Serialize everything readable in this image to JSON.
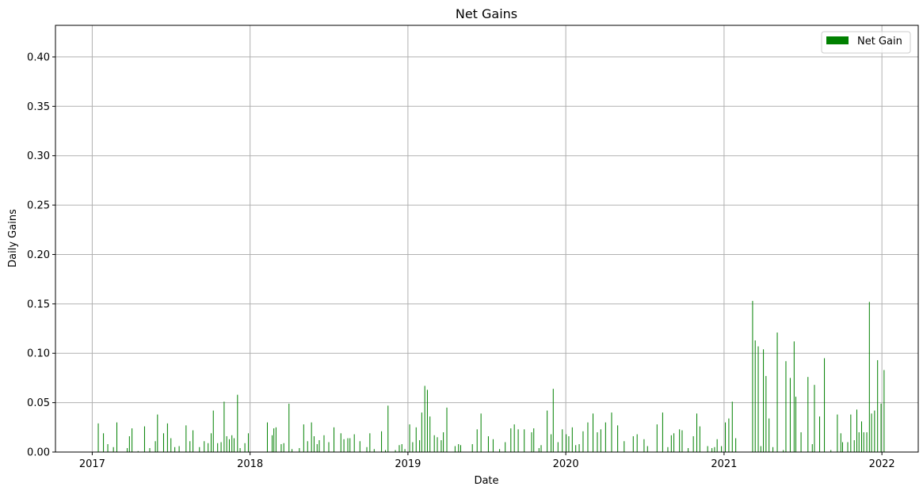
{
  "chart_data": {
    "type": "bar",
    "title": "Net Gains",
    "xlabel": "Date",
    "ylabel": "Daily Gains",
    "x_axis": "date",
    "xlim": [
      "2016-10-08",
      "2022-03-26"
    ],
    "ylim": [
      0,
      0.432
    ],
    "x_ticks": [
      "2017",
      "2018",
      "2019",
      "2020",
      "2021",
      "2022"
    ],
    "y_ticks": [
      "0.00",
      "0.05",
      "0.10",
      "0.15",
      "0.20",
      "0.25",
      "0.30",
      "0.35",
      "0.40"
    ],
    "grid": true,
    "legend_position": "top-right",
    "bar_color": "#008000",
    "series": [
      {
        "name": "Net Gain",
        "points": [
          [
            "2017-01-15",
            0.029
          ],
          [
            "2017-01-27",
            0.019
          ],
          [
            "2017-02-06",
            0.008
          ],
          [
            "2017-02-19",
            0.005
          ],
          [
            "2017-02-27",
            0.03
          ],
          [
            "2017-03-23",
            0.004
          ],
          [
            "2017-03-28",
            0.016
          ],
          [
            "2017-04-03",
            0.024
          ],
          [
            "2017-04-17",
            0.001
          ],
          [
            "2017-05-02",
            0.026
          ],
          [
            "2017-05-14",
            0.004
          ],
          [
            "2017-05-27",
            0.011
          ],
          [
            "2017-06-01",
            0.038
          ],
          [
            "2017-06-15",
            0.019
          ],
          [
            "2017-06-24",
            0.029
          ],
          [
            "2017-07-02",
            0.014
          ],
          [
            "2017-07-11",
            0.005
          ],
          [
            "2017-07-21",
            0.006
          ],
          [
            "2017-08-06",
            0.027
          ],
          [
            "2017-08-15",
            0.011
          ],
          [
            "2017-08-22",
            0.022
          ],
          [
            "2017-09-06",
            0.005
          ],
          [
            "2017-09-17",
            0.011
          ],
          [
            "2017-09-26",
            0.009
          ],
          [
            "2017-10-03",
            0.019
          ],
          [
            "2017-10-08",
            0.042
          ],
          [
            "2017-10-18",
            0.009
          ],
          [
            "2017-10-26",
            0.01
          ],
          [
            "2017-11-02",
            0.051
          ],
          [
            "2017-11-08",
            0.016
          ],
          [
            "2017-11-20",
            0.017
          ],
          [
            "2017-11-25",
            0.014
          ],
          [
            "2017-12-03",
            0.058
          ],
          [
            "2017-12-20",
            0.009
          ],
          [
            "2017-12-28",
            0.019
          ],
          [
            "2017-11-14",
            0.013
          ],
          [
            "2017-12-09",
            0.004
          ],
          [
            "2018-02-10",
            0.03
          ],
          [
            "2018-02-21",
            0.017
          ],
          [
            "2018-02-25",
            0.024
          ],
          [
            "2018-03-02",
            0.025
          ],
          [
            "2018-03-14",
            0.008
          ],
          [
            "2018-03-20",
            0.009
          ],
          [
            "2018-04-01",
            0.049
          ],
          [
            "2018-04-08",
            0.003
          ],
          [
            "2018-04-25",
            0.004
          ],
          [
            "2018-05-05",
            0.028
          ],
          [
            "2018-05-14",
            0.011
          ],
          [
            "2018-05-23",
            0.03
          ],
          [
            "2018-05-29",
            0.016
          ],
          [
            "2018-06-05",
            0.008
          ],
          [
            "2018-06-10",
            0.012
          ],
          [
            "2018-06-21",
            0.017
          ],
          [
            "2018-07-02",
            0.01
          ],
          [
            "2018-07-14",
            0.025
          ],
          [
            "2018-07-30",
            0.019
          ],
          [
            "2018-08-06",
            0.013
          ],
          [
            "2018-08-15",
            0.014
          ],
          [
            "2018-08-20",
            0.014
          ],
          [
            "2018-08-30",
            0.018
          ],
          [
            "2018-09-12",
            0.011
          ],
          [
            "2018-09-28",
            0.005
          ],
          [
            "2018-10-05",
            0.019
          ],
          [
            "2018-10-15",
            0.003
          ],
          [
            "2018-11-01",
            0.021
          ],
          [
            "2018-11-10",
            0.002
          ],
          [
            "2018-11-16",
            0.047
          ],
          [
            "2018-12-03",
            0.002
          ],
          [
            "2018-12-12",
            0.007
          ],
          [
            "2018-12-18",
            0.008
          ],
          [
            "2018-12-25",
            0.003
          ],
          [
            "2019-01-05",
            0.028
          ],
          [
            "2019-01-12",
            0.01
          ],
          [
            "2019-01-20",
            0.025
          ],
          [
            "2019-01-28",
            0.012
          ],
          [
            "2019-02-02",
            0.04
          ],
          [
            "2019-02-09",
            0.067
          ],
          [
            "2019-02-15",
            0.063
          ],
          [
            "2019-02-21",
            0.036
          ],
          [
            "2019-03-03",
            0.017
          ],
          [
            "2019-03-10",
            0.015
          ],
          [
            "2019-03-19",
            0.012
          ],
          [
            "2019-03-24",
            0.02
          ],
          [
            "2019-04-01",
            0.045
          ],
          [
            "2019-04-20",
            0.006
          ],
          [
            "2019-04-28",
            0.008
          ],
          [
            "2019-05-03",
            0.007
          ],
          [
            "2019-05-30",
            0.008
          ],
          [
            "2019-06-10",
            0.023
          ],
          [
            "2019-06-19",
            0.039
          ],
          [
            "2019-07-06",
            0.016
          ],
          [
            "2019-07-17",
            0.013
          ],
          [
            "2019-08-01",
            0.003
          ],
          [
            "2019-08-14",
            0.01
          ],
          [
            "2019-08-27",
            0.024
          ],
          [
            "2019-09-04",
            0.028
          ],
          [
            "2019-09-13",
            0.023
          ],
          [
            "2019-09-27",
            0.023
          ],
          [
            "2019-10-14",
            0.02
          ],
          [
            "2019-10-19",
            0.024
          ],
          [
            "2019-10-31",
            0.004
          ],
          [
            "2019-11-05",
            0.007
          ],
          [
            "2019-11-19",
            0.042
          ],
          [
            "2019-11-28",
            0.018
          ],
          [
            "2019-12-03",
            0.064
          ],
          [
            "2019-12-14",
            0.01
          ],
          [
            "2019-12-24",
            0.023
          ],
          [
            "2020-01-02",
            0.018
          ],
          [
            "2020-01-08",
            0.016
          ],
          [
            "2020-01-16",
            0.025
          ],
          [
            "2020-01-24",
            0.007
          ],
          [
            "2020-02-01",
            0.008
          ],
          [
            "2020-02-10",
            0.021
          ],
          [
            "2020-02-21",
            0.03
          ],
          [
            "2020-03-04",
            0.039
          ],
          [
            "2020-03-14",
            0.02
          ],
          [
            "2020-03-22",
            0.023
          ],
          [
            "2020-04-02",
            0.03
          ],
          [
            "2020-04-16",
            0.04
          ],
          [
            "2020-04-30",
            0.027
          ],
          [
            "2020-05-15",
            0.011
          ],
          [
            "2020-06-05",
            0.016
          ],
          [
            "2020-06-14",
            0.018
          ],
          [
            "2020-06-30",
            0.013
          ],
          [
            "2020-07-08",
            0.006
          ],
          [
            "2020-07-30",
            0.028
          ],
          [
            "2020-08-12",
            0.04
          ],
          [
            "2020-08-24",
            0.005
          ],
          [
            "2020-09-01",
            0.017
          ],
          [
            "2020-09-07",
            0.019
          ],
          [
            "2020-09-20",
            0.023
          ],
          [
            "2020-09-26",
            0.022
          ],
          [
            "2020-10-10",
            0.004
          ],
          [
            "2020-10-22",
            0.016
          ],
          [
            "2020-10-30",
            0.039
          ],
          [
            "2020-11-06",
            0.026
          ],
          [
            "2020-11-24",
            0.006
          ],
          [
            "2020-12-04",
            0.004
          ],
          [
            "2020-12-10",
            0.005
          ],
          [
            "2020-12-16",
            0.013
          ],
          [
            "2020-12-26",
            0.006
          ],
          [
            "2021-01-04",
            0.03
          ],
          [
            "2021-01-12",
            0.034
          ],
          [
            "2021-01-20",
            0.051
          ],
          [
            "2021-01-28",
            0.014
          ],
          [
            "2021-03-08",
            0.153
          ],
          [
            "2021-03-14",
            0.113
          ],
          [
            "2021-03-21",
            0.107
          ],
          [
            "2021-03-27",
            0.006
          ],
          [
            "2021-04-02",
            0.104
          ],
          [
            "2021-04-08",
            0.077
          ],
          [
            "2021-04-15",
            0.034
          ],
          [
            "2021-04-24",
            0.005
          ],
          [
            "2021-05-04",
            0.121
          ],
          [
            "2021-05-18",
            0.002
          ],
          [
            "2021-05-24",
            0.092
          ],
          [
            "2021-06-03",
            0.075
          ],
          [
            "2021-06-12",
            0.112
          ],
          [
            "2021-06-16",
            0.056
          ],
          [
            "2021-06-28",
            0.02
          ],
          [
            "2021-07-14",
            0.076
          ],
          [
            "2021-07-24",
            0.008
          ],
          [
            "2021-07-29",
            0.068
          ],
          [
            "2021-08-10",
            0.036
          ],
          [
            "2021-08-21",
            0.095
          ],
          [
            "2021-09-05",
            0.002
          ],
          [
            "2021-09-20",
            0.038
          ],
          [
            "2021-09-28",
            0.019
          ],
          [
            "2021-10-02",
            0.01
          ],
          [
            "2021-10-14",
            0.01
          ],
          [
            "2021-10-21",
            0.038
          ],
          [
            "2021-10-29",
            0.012
          ],
          [
            "2021-11-04",
            0.043
          ],
          [
            "2021-11-09",
            0.02
          ],
          [
            "2021-11-15",
            0.031
          ],
          [
            "2021-11-20",
            0.02
          ],
          [
            "2021-11-27",
            0.02
          ],
          [
            "2021-12-03",
            0.152
          ],
          [
            "2021-12-08",
            0.039
          ],
          [
            "2021-12-15",
            0.042
          ],
          [
            "2021-12-22",
            0.093
          ],
          [
            "2021-12-30",
            0.049
          ],
          [
            "2022-01-06",
            0.083
          ]
        ]
      }
    ]
  }
}
